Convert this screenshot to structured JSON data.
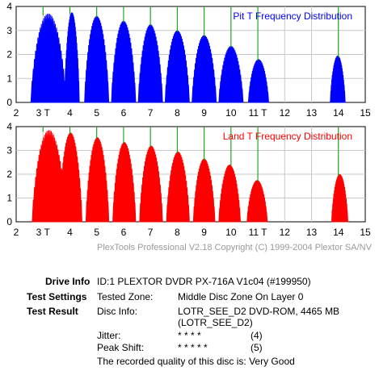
{
  "chart_data": [
    {
      "type": "area",
      "title": "Pit T Frequency Distribution",
      "color": "#0000ff",
      "xlim": [
        2,
        15
      ],
      "ylim": [
        0,
        4
      ],
      "xticks": [
        "2",
        "3 T",
        "4",
        "5",
        "6",
        "7",
        "8",
        "9",
        "10",
        "11 T",
        "12",
        "13",
        "14",
        "15"
      ],
      "yticks": [
        "0",
        "1",
        "2",
        "3",
        "4"
      ],
      "grid": true,
      "peaks": [
        {
          "t": 3,
          "x_from": 2.55,
          "x_to": 3.85,
          "peak": 3.7
        },
        {
          "t": 4,
          "x_from": 3.8,
          "x_to": 4.35,
          "peak": 3.75
        },
        {
          "t": 5,
          "x_from": 4.55,
          "x_to": 5.45,
          "peak": 3.6
        },
        {
          "t": 6,
          "x_from": 5.55,
          "x_to": 6.45,
          "peak": 3.4
        },
        {
          "t": 7,
          "x_from": 6.55,
          "x_to": 7.45,
          "peak": 3.25
        },
        {
          "t": 8,
          "x_from": 7.55,
          "x_to": 8.45,
          "peak": 3.0
        },
        {
          "t": 9,
          "x_from": 8.55,
          "x_to": 9.45,
          "peak": 2.8
        },
        {
          "t": 10,
          "x_from": 9.55,
          "x_to": 10.45,
          "peak": 2.35
        },
        {
          "t": 11,
          "x_from": 10.65,
          "x_to": 11.4,
          "peak": 1.8
        },
        {
          "t": 14,
          "x_from": 13.7,
          "x_to": 14.25,
          "peak": 1.95
        }
      ]
    },
    {
      "type": "area",
      "title": "Land T Frequency Distribution",
      "color": "#ff0000",
      "xlim": [
        2,
        15
      ],
      "ylim": [
        0,
        4
      ],
      "xticks": [
        "2",
        "3 T",
        "4",
        "5",
        "6",
        "7",
        "8",
        "9",
        "10",
        "11 T",
        "12",
        "13",
        "14",
        "15"
      ],
      "yticks": [
        "0",
        "1",
        "2",
        "3",
        "4"
      ],
      "grid": true,
      "peaks": [
        {
          "t": 3,
          "x_from": 2.6,
          "x_to": 3.85,
          "peak": 3.85
        },
        {
          "t": 4,
          "x_from": 3.6,
          "x_to": 4.45,
          "peak": 3.75
        },
        {
          "t": 5,
          "x_from": 4.6,
          "x_to": 5.45,
          "peak": 3.55
        },
        {
          "t": 6,
          "x_from": 5.6,
          "x_to": 6.45,
          "peak": 3.35
        },
        {
          "t": 7,
          "x_from": 6.6,
          "x_to": 7.45,
          "peak": 3.2
        },
        {
          "t": 8,
          "x_from": 7.6,
          "x_to": 8.45,
          "peak": 2.95
        },
        {
          "t": 9,
          "x_from": 8.6,
          "x_to": 9.4,
          "peak": 2.65
        },
        {
          "t": 10,
          "x_from": 9.55,
          "x_to": 10.35,
          "peak": 2.4
        },
        {
          "t": 11,
          "x_from": 10.6,
          "x_to": 11.35,
          "peak": 1.75
        },
        {
          "t": 14,
          "x_from": 13.75,
          "x_to": 14.35,
          "peak": 2.0
        }
      ]
    }
  ],
  "copyright": "PlexTools Professional V2.18 Copyright (C) 1999-2004 Plextor SA/NV",
  "info": {
    "drive_label": "Drive Info",
    "drive_value": "ID:1 PLEXTOR DVDR PX-716A V1c04 (#199950)",
    "settings_label": "Test Settings",
    "tested_zone_label": "Tested Zone:",
    "tested_zone_value": "Middle Disc Zone On Layer 0",
    "result_label": "Test Result",
    "disc_info_label": "Disc Info:",
    "disc_info_line1": "LOTR_SEE_D2 DVD-ROM, 4465 MB",
    "disc_info_line2": "(LOTR_SEE_D2)",
    "jitter_label": "Jitter:",
    "jitter_stars": "* * * *",
    "jitter_score": "(4)",
    "peak_shift_label": "Peak Shift:",
    "peak_shift_stars": "* * * * *",
    "peak_shift_score": "(5)",
    "quality_text": "The recorded quality of this disc is: Very Good"
  }
}
